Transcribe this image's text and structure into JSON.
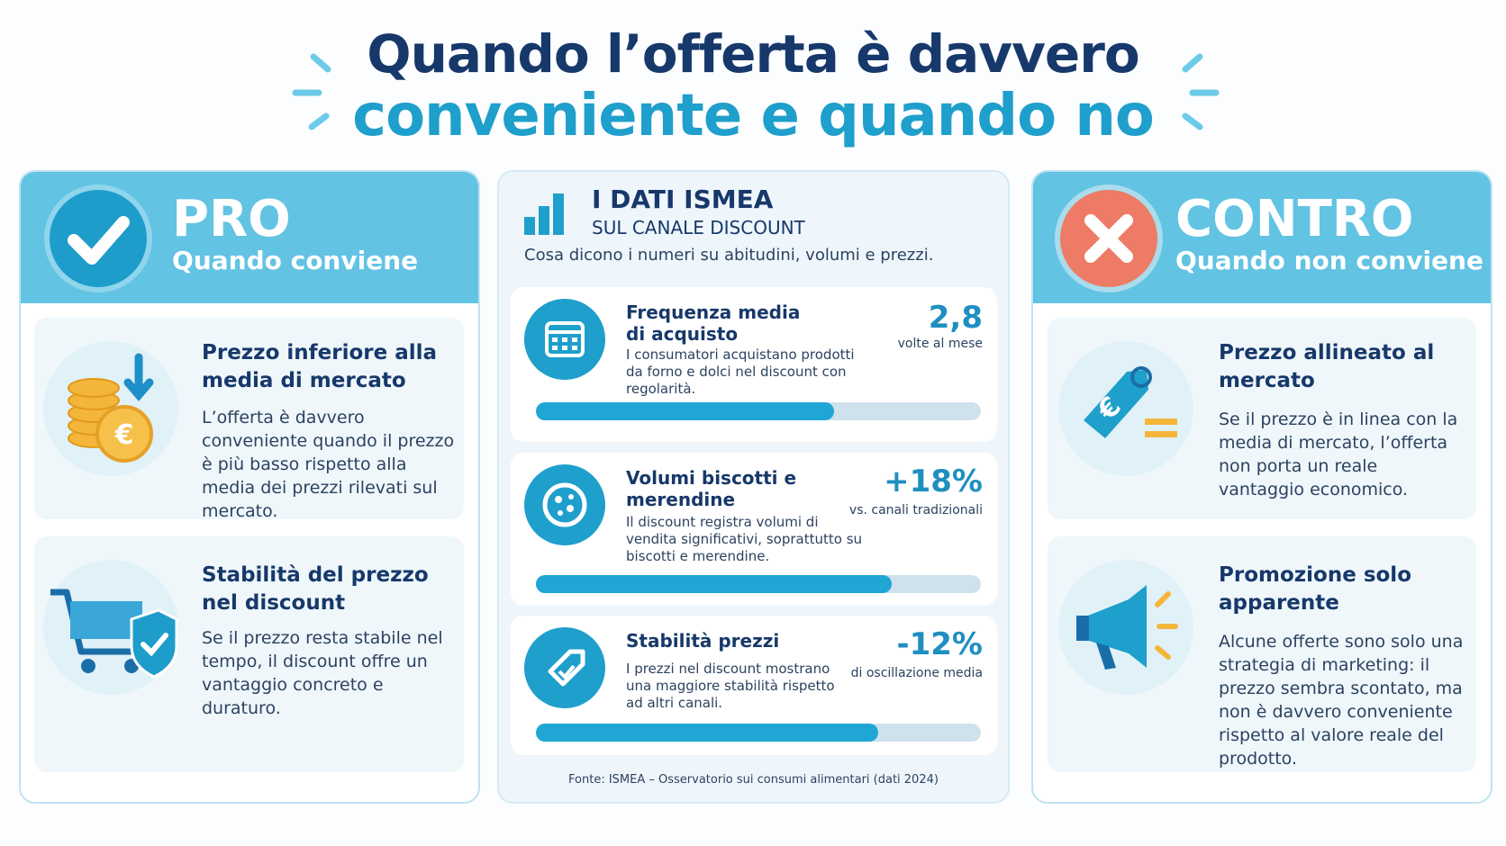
{
  "title": {
    "line1": "Quando l’offerta è davvero",
    "line2": "conveniente e quando no"
  },
  "pro": {
    "heading": "PRO",
    "subheading": "Quando conviene",
    "items": [
      {
        "title": "Prezzo inferiore alla media di mercato",
        "text": "L’offerta è davvero conveniente quando il prezzo è più basso rispetto alla media dei prezzi rilevati sul mercato."
      },
      {
        "title": "Stabilità del prezzo nel discount",
        "text": "Se il prezzo resta stabile nel tempo, il discount offre un vantaggio concreto e duraturo."
      }
    ]
  },
  "ismea": {
    "heading": "I DATI ISMEA",
    "subheading": "SUL CANALE DISCOUNT",
    "intro": "Cosa dicono i numeri su abitudini, volumi e prezzi.",
    "stats": [
      {
        "title": "Frequenza media di acquisto",
        "text": "I consumatori acquistano prodotti da forno e dolci nel discount con regolarità.",
        "value": "2,8",
        "unit": "volte al mese"
      },
      {
        "title": "Volumi biscotti e merendine",
        "text": "Il discount registra volumi di vendita significativi, soprattutto su biscotti e merendine.",
        "value": "+18%",
        "unit": "vs. canali tradizionali"
      },
      {
        "title": "Stabilità prezzi",
        "text": "I prezzi nel discount mostrano una maggiore stabilità rispetto ad altri canali.",
        "value": "-12%",
        "unit": "di oscillazione media"
      }
    ],
    "source": "Fonte: ISMEA – Osservatorio sui consumi alimentari (dati 2024)"
  },
  "contro": {
    "heading": "CONTRO",
    "subheading": "Quando non conviene",
    "items": [
      {
        "title": "Prezzo allineato al mercato",
        "text": "Se il prezzo è in linea con la media di mercato, l’offerta non porta un reale vantaggio economico."
      },
      {
        "title": "Promozione solo apparente",
        "text": "Alcune offerte sono solo una strategia di marketing: il prezzo sembra scontato, ma non è davvero conveniente rispetto al valore reale del prodotto."
      }
    ]
  }
}
